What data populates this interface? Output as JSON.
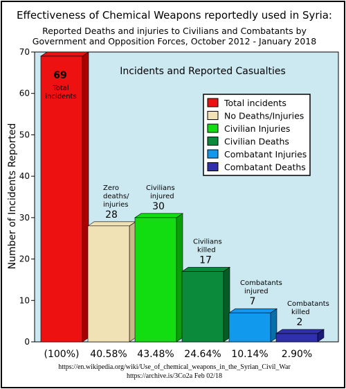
{
  "title": "Effectiveness of Chemical Weapons reportedly used in Syria:",
  "subtitle_line1": "Reported Deaths and injuries to Civilians and Combatants by",
  "subtitle_line2": "Government and Opposition Forces, October 2012 - January 2018",
  "source_line1": "https://en.wikipedia.org/wiki/Use_of_chemical_weapons_in_the_Syrian_Civil_War",
  "source_line2": "https://archive.is/3Co2a   Feb 02/18",
  "chart_data": {
    "type": "bar",
    "title": "Incidents and Reported Casualties",
    "ylabel": "Number of Incidents Reported",
    "xlabel": "",
    "ylim": [
      0,
      70
    ],
    "yticks": [
      0,
      10,
      20,
      30,
      40,
      50,
      60,
      70
    ],
    "grid": false,
    "legend_placement": "top-right",
    "categories": [
      "Total incidents",
      "No Deaths/Injuries",
      "Civilian Injuries",
      "Civilian Deaths",
      "Combatant Injuries",
      "Combatant Deaths"
    ],
    "values": [
      69,
      28,
      30,
      17,
      7,
      2
    ],
    "percent_labels": [
      "(100%)",
      "40.58%",
      "43.48%",
      "24.64%",
      "10.14%",
      "2.90%"
    ],
    "bar_annotations": [
      [
        "Total",
        "incidents"
      ],
      [
        "Zero",
        "deaths/",
        "injuries"
      ],
      [
        "Civilians",
        "injured"
      ],
      [
        "Civilians",
        "killed"
      ],
      [
        "Combatants",
        "injured"
      ],
      [
        "Combatants",
        "killed"
      ]
    ],
    "colors": [
      "#ee1111",
      "#f0e2b4",
      "#11dd11",
      "#0b8a3c",
      "#1199ee",
      "#2f2fb0"
    ],
    "side_colors": [
      "#a80000",
      "#c9b98a",
      "#0a9e0a",
      "#055c25",
      "#0a6ea8",
      "#1a1a78"
    ],
    "legend": [
      {
        "label": "Total incidents",
        "color": "#ee1111"
      },
      {
        "label": "No Deaths/Injuries",
        "color": "#f0e2b4"
      },
      {
        "label": "Civilian Injuries",
        "color": "#11dd11"
      },
      {
        "label": "Civilian Deaths",
        "color": "#0b8a3c"
      },
      {
        "label": "Combatant Injuries",
        "color": "#1199ee"
      },
      {
        "label": "Combatant Deaths",
        "color": "#2f2fb0"
      }
    ],
    "plot_background": "#cce9f2"
  }
}
